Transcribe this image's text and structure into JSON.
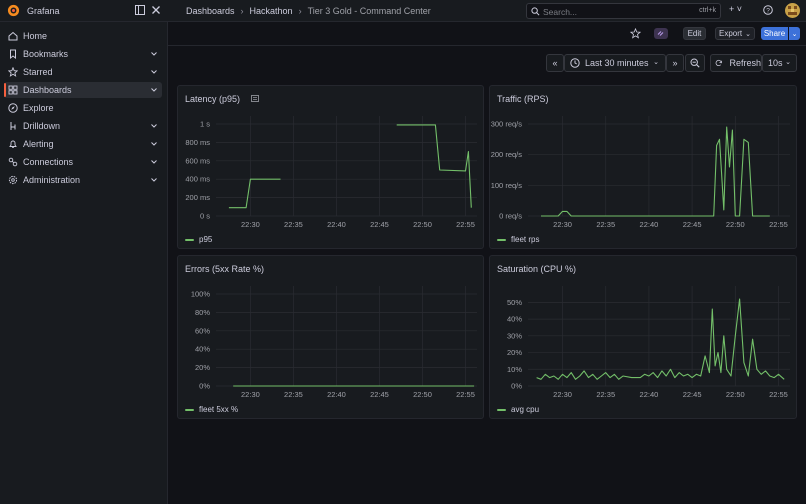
{
  "app": {
    "brand": "Grafana"
  },
  "breadcrumb": [
    "Dashboards",
    "Hackathon",
    "Tier 3 Gold - Command Center"
  ],
  "search": {
    "placeholder": "Search...",
    "shortcut": "ctrl+k"
  },
  "topbar": {
    "new_label": "+ ˅"
  },
  "sidebar": {
    "items": [
      {
        "label": "Home",
        "icon": "home-icon",
        "expandable": false,
        "active": false
      },
      {
        "label": "Bookmarks",
        "icon": "bookmark-icon",
        "expandable": true,
        "active": false
      },
      {
        "label": "Starred",
        "icon": "star-icon",
        "expandable": true,
        "active": false
      },
      {
        "label": "Dashboards",
        "icon": "dashboards-icon",
        "expandable": true,
        "active": true
      },
      {
        "label": "Explore",
        "icon": "compass-icon",
        "expandable": false,
        "active": false
      },
      {
        "label": "Drilldown",
        "icon": "drilldown-icon",
        "expandable": true,
        "active": false
      },
      {
        "label": "Alerting",
        "icon": "bell-icon",
        "expandable": true,
        "active": false
      },
      {
        "label": "Connections",
        "icon": "connections-icon",
        "expandable": true,
        "active": false
      },
      {
        "label": "Administration",
        "icon": "gear-icon",
        "expandable": true,
        "active": false
      }
    ]
  },
  "toolbar": {
    "edit_label": "Edit",
    "export_label": "Export",
    "share_label": "Share"
  },
  "time": {
    "range_label": "Last 30 minutes",
    "refresh_label": "Refresh",
    "interval_label": "10s"
  },
  "colors": {
    "series": "#73bf69",
    "accent": "#3d71d9",
    "brand": "#f55f3e"
  },
  "panels": {
    "latency": {
      "title": "Latency (p95)",
      "legend": "p95"
    },
    "traffic": {
      "title": "Traffic (RPS)",
      "legend": "fleet rps"
    },
    "errors": {
      "title": "Errors (5xx Rate %)",
      "legend": "fleet 5xx %"
    },
    "saturation": {
      "title": "Saturation (CPU %)",
      "legend": "avg cpu"
    }
  },
  "chart_data": [
    {
      "type": "line",
      "title": "Latency (p95)",
      "x_ticks": [
        "22:30",
        "22:35",
        "22:40",
        "22:45",
        "22:50",
        "22:55"
      ],
      "y_ticks": [
        "0 s",
        "200 ms",
        "400 ms",
        "600 ms",
        "800 ms",
        "1 s"
      ],
      "ylim": [
        0,
        1000
      ],
      "series": [
        {
          "name": "p95",
          "segments": [
            [
              [
                "22:27:30",
                90
              ],
              [
                "22:29:30",
                90
              ],
              [
                "22:30:00",
                400
              ],
              [
                "22:33:30",
                400
              ]
            ],
            [
              [
                "22:47:00",
                990
              ],
              [
                "22:51:30",
                990
              ],
              [
                "22:52:00",
                500
              ],
              [
                "22:55:00",
                490
              ],
              [
                "22:55:20",
                700
              ],
              [
                "22:55:40",
                90
              ]
            ]
          ]
        }
      ]
    },
    {
      "type": "line",
      "title": "Traffic (RPS)",
      "x_ticks": [
        "22:30",
        "22:35",
        "22:40",
        "22:45",
        "22:50",
        "22:55"
      ],
      "y_ticks": [
        "0 req/s",
        "100 req/s",
        "200 req/s",
        "300 req/s"
      ],
      "ylim": [
        0,
        300
      ],
      "series": [
        {
          "name": "fleet rps",
          "values": [
            [
              "22:27:30",
              0
            ],
            [
              "22:29:30",
              0
            ],
            [
              "22:30:00",
              15
            ],
            [
              "22:30:30",
              15
            ],
            [
              "22:31:00",
              0
            ],
            [
              "22:38:00",
              0
            ],
            [
              "22:47:30",
              0
            ],
            [
              "22:47:50",
              230
            ],
            [
              "22:48:10",
              250
            ],
            [
              "22:48:40",
              20
            ],
            [
              "22:49:00",
              290
            ],
            [
              "22:49:20",
              160
            ],
            [
              "22:49:40",
              280
            ],
            [
              "22:50:00",
              0
            ],
            [
              "22:50:30",
              0
            ],
            [
              "22:51:00",
              250
            ],
            [
              "22:51:30",
              240
            ],
            [
              "22:52:00",
              0
            ],
            [
              "22:54:00",
              0
            ]
          ]
        }
      ]
    },
    {
      "type": "line",
      "title": "Errors (5xx Rate %)",
      "x_ticks": [
        "22:30",
        "22:35",
        "22:40",
        "22:45",
        "22:50",
        "22:55"
      ],
      "y_ticks": [
        "0%",
        "20%",
        "40%",
        "60%",
        "80%",
        "100%"
      ],
      "ylim": [
        0,
        100
      ],
      "series": [
        {
          "name": "fleet 5xx %",
          "values": [
            [
              "22:28:00",
              0
            ],
            [
              "22:56:00",
              0
            ]
          ]
        }
      ]
    },
    {
      "type": "line",
      "title": "Saturation (CPU %)",
      "x_ticks": [
        "22:30",
        "22:35",
        "22:40",
        "22:45",
        "22:50",
        "22:55"
      ],
      "y_ticks": [
        "0%",
        "10%",
        "20%",
        "30%",
        "40%",
        "50%"
      ],
      "ylim": [
        0,
        55
      ],
      "series": [
        {
          "name": "avg cpu",
          "values": [
            [
              "22:27:00",
              5
            ],
            [
              "22:27:30",
              4
            ],
            [
              "22:28:00",
              7
            ],
            [
              "22:28:30",
              5
            ],
            [
              "22:29:00",
              6
            ],
            [
              "22:29:30",
              4
            ],
            [
              "22:30:00",
              7
            ],
            [
              "22:30:30",
              5
            ],
            [
              "22:31:00",
              8
            ],
            [
              "22:31:30",
              4
            ],
            [
              "22:32:00",
              6
            ],
            [
              "22:32:30",
              9
            ],
            [
              "22:33:00",
              5
            ],
            [
              "22:33:30",
              7
            ],
            [
              "22:34:00",
              4
            ],
            [
              "22:34:30",
              6
            ],
            [
              "22:35:00",
              8
            ],
            [
              "22:35:30",
              5
            ],
            [
              "22:36:00",
              7
            ],
            [
              "22:36:30",
              4
            ],
            [
              "22:37:00",
              6
            ],
            [
              "22:38:00",
              5
            ],
            [
              "22:39:00",
              5
            ],
            [
              "22:39:30",
              7
            ],
            [
              "22:40:00",
              6
            ],
            [
              "22:40:30",
              8
            ],
            [
              "22:41:00",
              5
            ],
            [
              "22:41:30",
              9
            ],
            [
              "22:42:00",
              6
            ],
            [
              "22:42:30",
              10
            ],
            [
              "22:43:00",
              5
            ],
            [
              "22:43:30",
              8
            ],
            [
              "22:44:00",
              6
            ],
            [
              "22:44:30",
              7
            ],
            [
              "22:45:00",
              5
            ],
            [
              "22:45:30",
              7
            ],
            [
              "22:46:00",
              6
            ],
            [
              "22:46:30",
              18
            ],
            [
              "22:47:00",
              8
            ],
            [
              "22:47:20",
              46
            ],
            [
              "22:47:40",
              12
            ],
            [
              "22:48:00",
              20
            ],
            [
              "22:48:20",
              8
            ],
            [
              "22:48:40",
              30
            ],
            [
              "22:49:00",
              10
            ],
            [
              "22:49:30",
              6
            ],
            [
              "22:50:00",
              30
            ],
            [
              "22:50:30",
              52
            ],
            [
              "22:51:00",
              14
            ],
            [
              "22:51:30",
              6
            ],
            [
              "22:52:00",
              28
            ],
            [
              "22:52:30",
              10
            ],
            [
              "22:53:00",
              7
            ],
            [
              "22:53:30",
              9
            ],
            [
              "22:54:00",
              6
            ],
            [
              "22:54:30",
              5
            ],
            [
              "22:55:00",
              7
            ],
            [
              "22:55:40",
              4
            ]
          ]
        }
      ]
    }
  ]
}
